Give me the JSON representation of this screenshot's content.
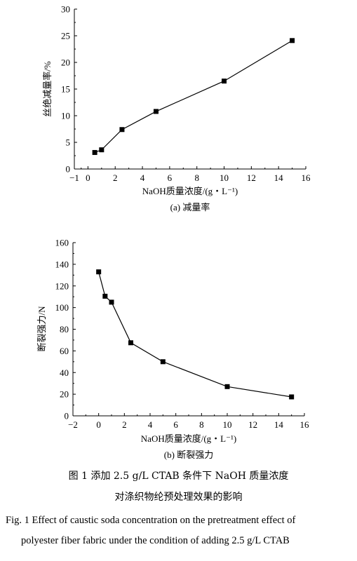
{
  "chart_data": [
    {
      "type": "line",
      "ylabel": "丝绝减量率/%",
      "xlabel": "NaOH质量浓度/(g・L⁻¹)",
      "subcaption": "(a) 减量率",
      "xlim": [
        -1,
        16
      ],
      "ylim": [
        0,
        30
      ],
      "xticks": [
        "−1",
        "0",
        "2",
        "4",
        "6",
        "8",
        "10",
        "12",
        "14",
        "16"
      ],
      "xtick_values": [
        -1,
        0,
        2,
        4,
        6,
        8,
        10,
        12,
        14,
        16
      ],
      "yticks": [
        "0",
        "5",
        "10",
        "15",
        "20",
        "25",
        "30"
      ],
      "ytick_values": [
        0,
        5,
        10,
        15,
        20,
        25,
        30
      ],
      "grid": false,
      "series": [
        {
          "x": [
            0.5,
            1,
            2.5,
            5,
            10,
            15
          ],
          "y": [
            3.1,
            3.6,
            7.4,
            10.8,
            16.5,
            24.1
          ]
        }
      ]
    },
    {
      "type": "line",
      "ylabel": "断裂强力/N",
      "xlabel": "NaOH质量浓度/(g・L⁻¹)",
      "subcaption": "(b) 断裂强力",
      "xlim": [
        -2,
        16
      ],
      "ylim": [
        0,
        160
      ],
      "xticks": [
        "−2",
        "0",
        "2",
        "4",
        "6",
        "8",
        "10",
        "12",
        "14",
        "16"
      ],
      "xtick_values": [
        -2,
        0,
        2,
        4,
        6,
        8,
        10,
        12,
        14,
        16
      ],
      "yticks": [
        "0",
        "20",
        "40",
        "60",
        "80",
        "100",
        "120",
        "140",
        "160"
      ],
      "ytick_values": [
        0,
        20,
        40,
        60,
        80,
        100,
        120,
        140,
        160
      ],
      "grid": false,
      "series": [
        {
          "x": [
            0,
            0.5,
            1,
            2.5,
            5,
            10,
            15
          ],
          "y": [
            133,
            110.5,
            105,
            67.5,
            50,
            27,
            17.5
          ]
        }
      ]
    }
  ],
  "caption": {
    "cn_line1": "图 1   添加 2.5 g/L CTAB 条件下 NaOH 质量浓度",
    "cn_line2": "对涤织物纶预处理效果的影响",
    "en_line1": "Fig. 1   Effect of caustic soda concentration on the pretreatment effect of",
    "en_line2": "polyester fiber fabric under the condition of adding 2.5 g/L CTAB"
  }
}
